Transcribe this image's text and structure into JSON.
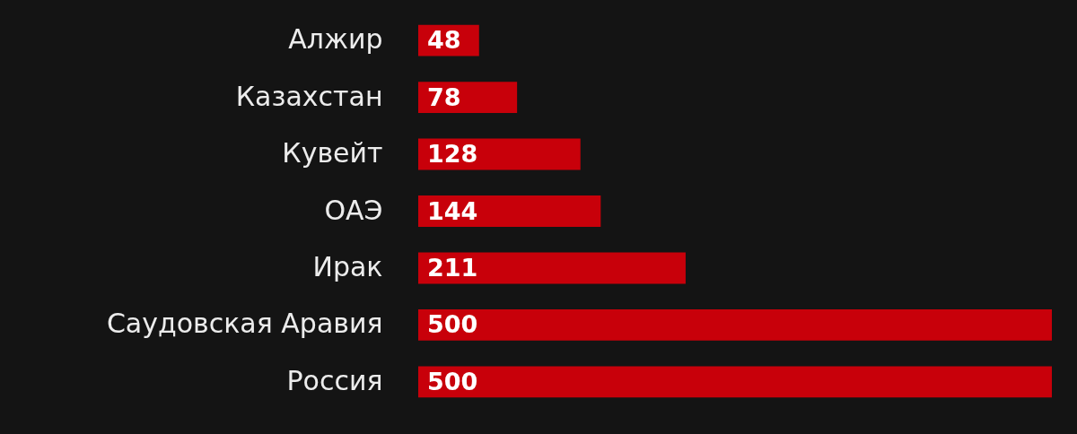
{
  "chart_data": {
    "type": "bar",
    "orientation": "horizontal",
    "categories": [
      "Алжир",
      "Казахстан",
      "Кувейт",
      "ОАЭ",
      "Ирак",
      "Саудовская Аравия",
      "Россия"
    ],
    "values": [
      48,
      78,
      128,
      144,
      211,
      500,
      500
    ],
    "color": "#c8000a",
    "data_labels": true
  }
}
